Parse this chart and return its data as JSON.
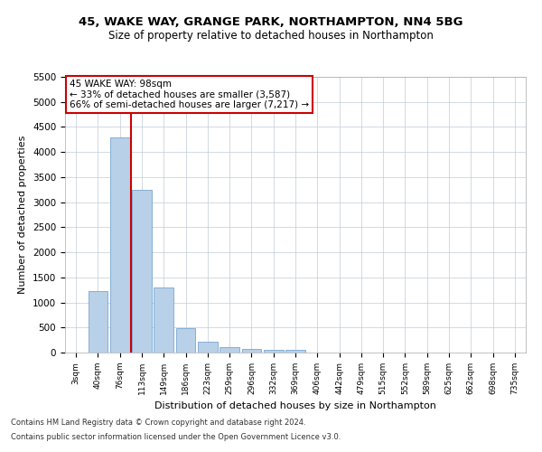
{
  "title1": "45, WAKE WAY, GRANGE PARK, NORTHAMPTON, NN4 5BG",
  "title2": "Size of property relative to detached houses in Northampton",
  "xlabel": "Distribution of detached houses by size in Northampton",
  "ylabel": "Number of detached properties",
  "footnote1": "Contains HM Land Registry data © Crown copyright and database right 2024.",
  "footnote2": "Contains public sector information licensed under the Open Government Licence v3.0.",
  "annotation_title": "45 WAKE WAY: 98sqm",
  "annotation_line1": "← 33% of detached houses are smaller (3,587)",
  "annotation_line2": "66% of semi-detached houses are larger (7,217) →",
  "bar_color": "#b8d0e8",
  "bar_edge_color": "#6699cc",
  "vline_color": "#cc0000",
  "annotation_box_edge": "#cc0000",
  "categories": [
    "3sqm",
    "40sqm",
    "76sqm",
    "113sqm",
    "149sqm",
    "186sqm",
    "223sqm",
    "259sqm",
    "296sqm",
    "332sqm",
    "369sqm",
    "406sqm",
    "442sqm",
    "479sqm",
    "515sqm",
    "552sqm",
    "589sqm",
    "625sqm",
    "662sqm",
    "698sqm",
    "735sqm"
  ],
  "values": [
    0,
    1230,
    4290,
    3240,
    1290,
    480,
    210,
    110,
    70,
    50,
    50,
    0,
    0,
    0,
    0,
    0,
    0,
    0,
    0,
    0,
    0
  ],
  "ylim": [
    0,
    5500
  ],
  "yticks": [
    0,
    500,
    1000,
    1500,
    2000,
    2500,
    3000,
    3500,
    4000,
    4500,
    5000,
    5500
  ],
  "vline_x_index": 2.5,
  "background_color": "#ffffff",
  "grid_color": "#c0ccd8"
}
